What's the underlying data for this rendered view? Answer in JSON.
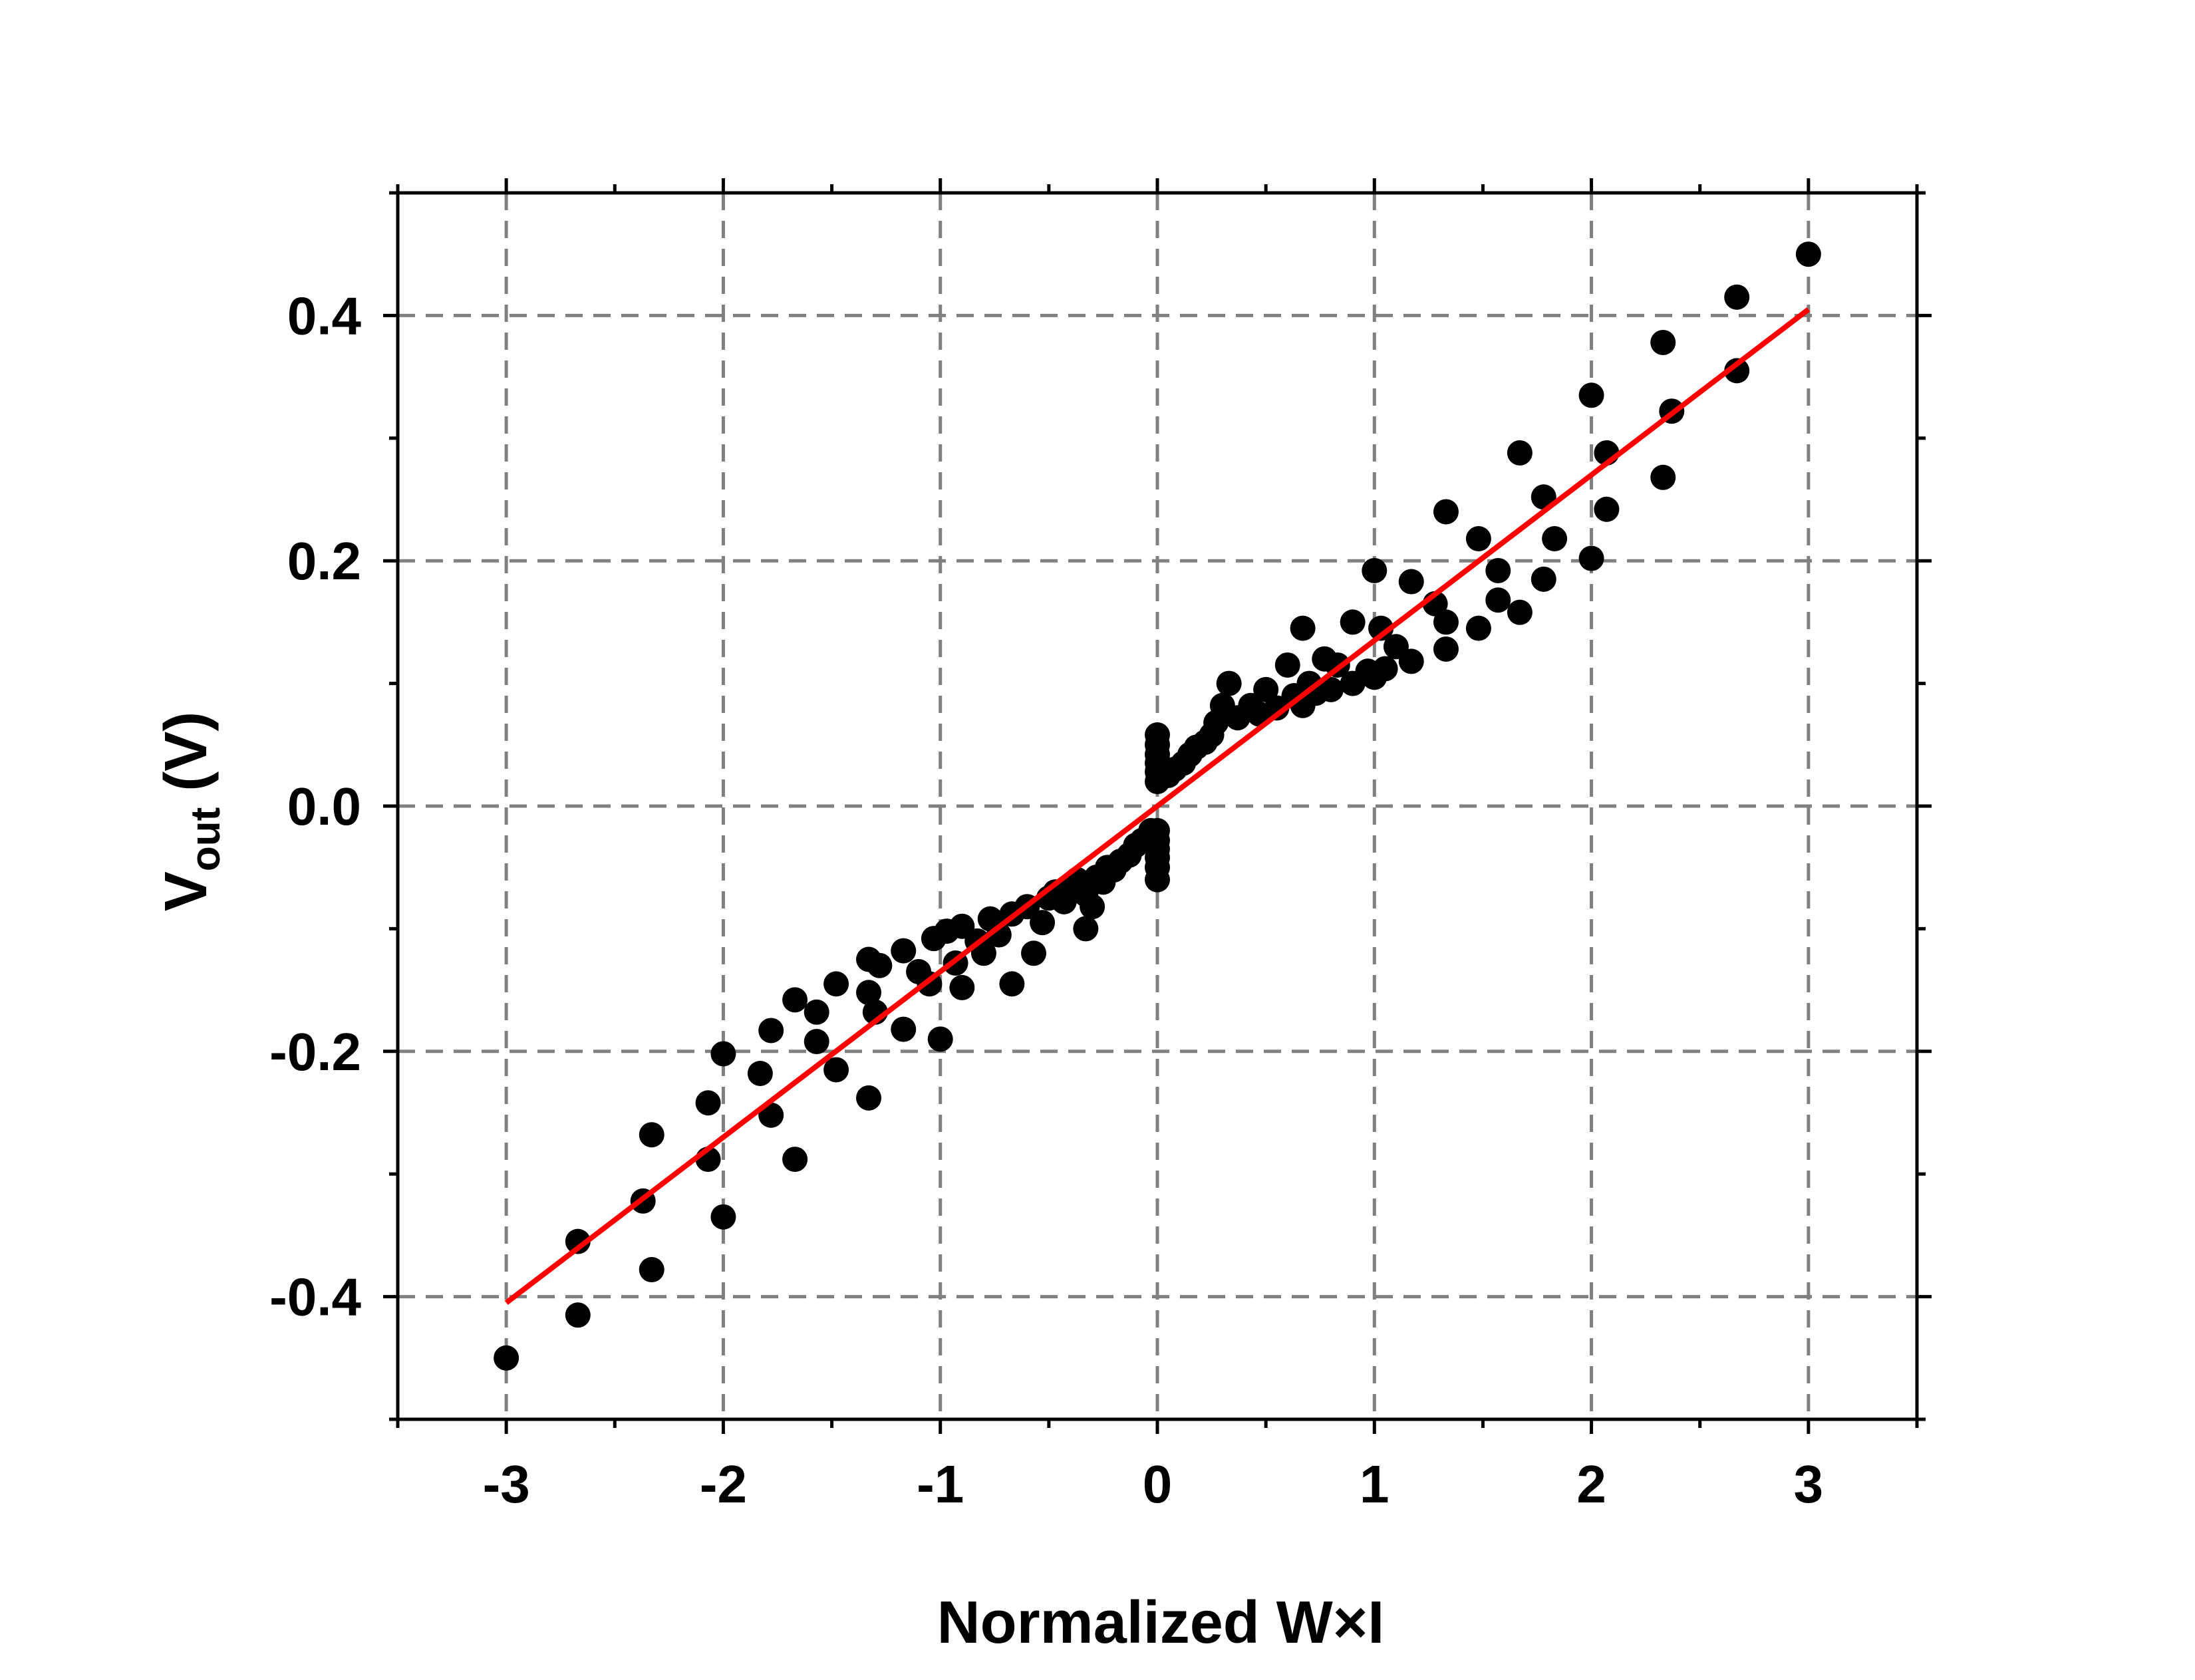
{
  "chart_data": {
    "type": "scatter",
    "title": "",
    "xlabel": "Normalized W×I",
    "ylabel_main": "V",
    "ylabel_sub": "out",
    "ylabel_unit": "(V)",
    "xlim": [
      -3.5,
      3.5
    ],
    "ylim": [
      -0.5,
      0.5
    ],
    "xticks": [
      -3,
      -2,
      -1,
      0,
      1,
      2,
      3
    ],
    "xtick_labels": [
      "-3",
      "-2",
      "-1",
      "0",
      "1",
      "2",
      "3"
    ],
    "yticks": [
      -0.4,
      -0.2,
      0.0,
      0.2,
      0.4
    ],
    "ytick_labels": [
      "-0.4",
      "-0.2",
      "0.0",
      "0.2",
      "0.4"
    ],
    "x_minor_ticks": [
      -3.5,
      -2.5,
      -1.5,
      -0.5,
      0.5,
      1.5,
      2.5,
      3.5
    ],
    "y_minor_ticks": [
      -0.5,
      -0.3,
      -0.1,
      0.1,
      0.3,
      0.5
    ],
    "grid": true,
    "colors": {
      "points": "#000000",
      "fit": "#ff0000",
      "grid": "#808080"
    },
    "series": [
      {
        "type": "scatter",
        "points": [
          [
            -3.0,
            -0.45
          ],
          [
            -2.67,
            -0.415
          ],
          [
            -2.67,
            -0.355
          ],
          [
            -2.33,
            -0.378
          ],
          [
            -2.37,
            -0.322
          ],
          [
            -2.33,
            -0.268
          ],
          [
            -2.0,
            -0.335
          ],
          [
            -2.07,
            -0.288
          ],
          [
            -2.07,
            -0.242
          ],
          [
            -2.0,
            -0.202
          ],
          [
            -1.67,
            -0.288
          ],
          [
            -1.78,
            -0.252
          ],
          [
            -1.83,
            -0.218
          ],
          [
            -1.78,
            -0.183
          ],
          [
            -1.67,
            -0.158
          ],
          [
            -1.57,
            -0.168
          ],
          [
            -1.57,
            -0.192
          ],
          [
            -1.48,
            -0.215
          ],
          [
            -1.48,
            -0.145
          ],
          [
            -1.33,
            -0.238
          ],
          [
            -1.33,
            -0.152
          ],
          [
            -1.33,
            -0.125
          ],
          [
            -1.3,
            -0.168
          ],
          [
            -1.28,
            -0.13
          ],
          [
            -1.17,
            -0.182
          ],
          [
            -1.17,
            -0.118
          ],
          [
            -1.1,
            -0.135
          ],
          [
            -1.05,
            -0.145
          ],
          [
            -1.03,
            -0.108
          ],
          [
            -1.0,
            -0.19
          ],
          [
            -0.97,
            -0.102
          ],
          [
            -0.93,
            -0.128
          ],
          [
            -0.9,
            -0.148
          ],
          [
            -0.9,
            -0.098
          ],
          [
            -0.83,
            -0.11
          ],
          [
            -0.8,
            -0.12
          ],
          [
            -0.77,
            -0.092
          ],
          [
            -0.73,
            -0.105
          ],
          [
            -0.67,
            -0.145
          ],
          [
            -0.67,
            -0.088
          ],
          [
            -0.6,
            -0.082
          ],
          [
            -0.57,
            -0.12
          ],
          [
            -0.53,
            -0.095
          ],
          [
            -0.5,
            -0.075
          ],
          [
            -0.47,
            -0.07
          ],
          [
            -0.43,
            -0.078
          ],
          [
            -0.4,
            -0.065
          ],
          [
            -0.37,
            -0.06
          ],
          [
            -0.33,
            -0.1
          ],
          [
            -0.33,
            -0.072
          ],
          [
            -0.3,
            -0.082
          ],
          [
            -0.28,
            -0.058
          ],
          [
            -0.25,
            -0.062
          ],
          [
            -0.23,
            -0.05
          ],
          [
            -0.2,
            -0.052
          ],
          [
            -0.17,
            -0.045
          ],
          [
            -0.13,
            -0.04
          ],
          [
            -0.1,
            -0.032
          ],
          [
            -0.07,
            -0.028
          ],
          [
            -0.03,
            -0.02
          ],
          [
            0.0,
            -0.06
          ],
          [
            0.0,
            -0.05
          ],
          [
            0.0,
            -0.042
          ],
          [
            0.0,
            -0.035
          ],
          [
            0.0,
            -0.028
          ],
          [
            0.0,
            -0.02
          ],
          [
            0.0,
            0.02
          ],
          [
            0.0,
            0.028
          ],
          [
            0.0,
            0.035
          ],
          [
            0.0,
            0.042
          ],
          [
            0.0,
            0.05
          ],
          [
            0.0,
            0.058
          ],
          [
            0.05,
            0.025
          ],
          [
            0.08,
            0.03
          ],
          [
            0.12,
            0.035
          ],
          [
            0.15,
            0.042
          ],
          [
            0.18,
            0.048
          ],
          [
            0.22,
            0.052
          ],
          [
            0.25,
            0.058
          ],
          [
            0.27,
            0.068
          ],
          [
            0.3,
            0.082
          ],
          [
            0.33,
            0.1
          ],
          [
            0.37,
            0.072
          ],
          [
            0.43,
            0.082
          ],
          [
            0.47,
            0.075
          ],
          [
            0.5,
            0.095
          ],
          [
            0.55,
            0.08
          ],
          [
            0.6,
            0.115
          ],
          [
            0.63,
            0.09
          ],
          [
            0.67,
            0.145
          ],
          [
            0.67,
            0.082
          ],
          [
            0.7,
            0.1
          ],
          [
            0.73,
            0.092
          ],
          [
            0.77,
            0.12
          ],
          [
            0.8,
            0.095
          ],
          [
            0.83,
            0.115
          ],
          [
            0.9,
            0.15
          ],
          [
            0.9,
            0.1
          ],
          [
            0.97,
            0.11
          ],
          [
            1.0,
            0.192
          ],
          [
            1.0,
            0.105
          ],
          [
            1.03,
            0.145
          ],
          [
            1.05,
            0.112
          ],
          [
            1.1,
            0.13
          ],
          [
            1.17,
            0.183
          ],
          [
            1.17,
            0.118
          ],
          [
            1.28,
            0.165
          ],
          [
            1.33,
            0.24
          ],
          [
            1.33,
            0.15
          ],
          [
            1.33,
            0.128
          ],
          [
            1.48,
            0.218
          ],
          [
            1.48,
            0.145
          ],
          [
            1.57,
            0.192
          ],
          [
            1.57,
            0.168
          ],
          [
            1.67,
            0.288
          ],
          [
            1.67,
            0.158
          ],
          [
            1.78,
            0.252
          ],
          [
            1.78,
            0.185
          ],
          [
            1.83,
            0.218
          ],
          [
            2.0,
            0.335
          ],
          [
            2.0,
            0.202
          ],
          [
            2.07,
            0.288
          ],
          [
            2.07,
            0.242
          ],
          [
            2.33,
            0.378
          ],
          [
            2.37,
            0.322
          ],
          [
            2.33,
            0.268
          ],
          [
            2.67,
            0.415
          ],
          [
            2.67,
            0.355
          ],
          [
            3.0,
            0.45
          ]
        ]
      },
      {
        "type": "line",
        "points": [
          [
            -3.0,
            -0.405
          ],
          [
            3.0,
            0.405
          ]
        ]
      }
    ]
  }
}
